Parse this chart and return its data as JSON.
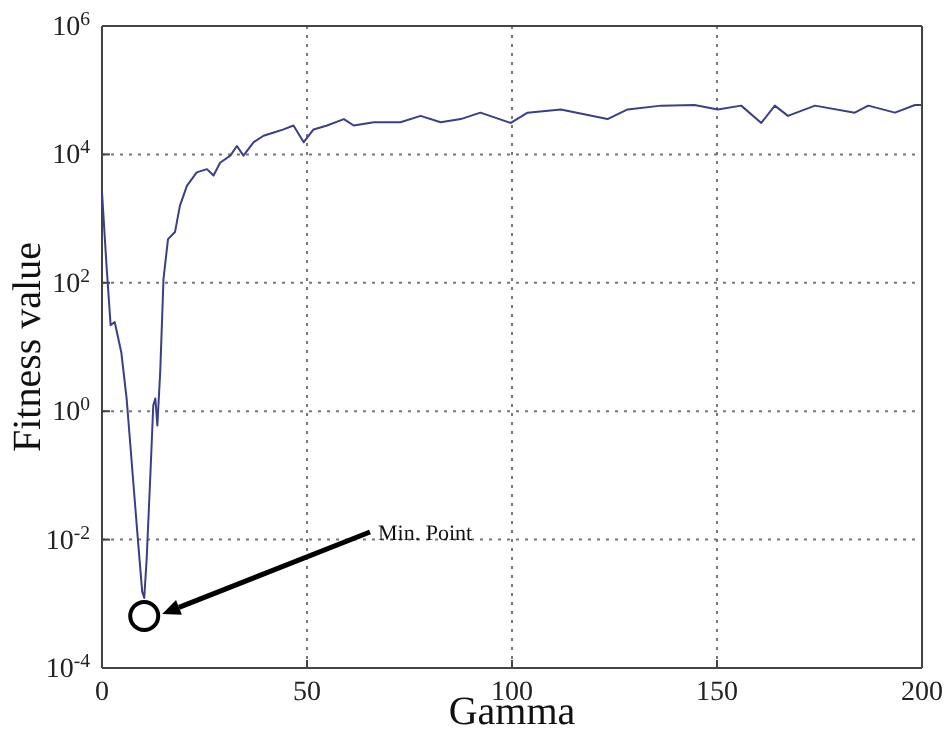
{
  "chart_data": {
    "type": "line",
    "xlabel": "Gamma",
    "ylabel": "Fitness value",
    "log": "y",
    "grid": true,
    "marker": "none",
    "line_style": "solid",
    "xlim": [
      0,
      200
    ],
    "xticks": [
      0,
      50,
      100,
      150,
      200
    ],
    "ylim": [
      0.0001,
      1000000
    ],
    "yticks": [
      {
        "value": 0.0001,
        "label": "10$^{-4}$"
      },
      {
        "value": 0.01,
        "label": "10$^{-2}$"
      },
      {
        "value": 1,
        "label": "10$^{0}$"
      },
      {
        "value": 100,
        "label": "10$^{2}$"
      },
      {
        "value": 10000,
        "label": "10$^{4}$"
      },
      {
        "value": 1000000,
        "label": "10$^{6}$"
      }
    ],
    "annotations": [
      "Min. Point"
    ],
    "series": [
      {
        "color": "#3b3f86",
        "x": [
          0,
          0.3,
          1.1,
          2.1,
          3.1,
          4.7,
          6,
          7.3,
          8.6,
          9.8,
          10.3,
          10.9,
          11.9,
          12.5,
          13,
          13.5,
          14.2,
          15,
          16.1,
          17.8,
          19,
          20.7,
          23.1,
          25.6,
          27.2,
          28.8,
          31.3,
          32.9,
          34.5,
          37,
          39.4,
          41.9,
          44.3,
          46.7,
          49.2,
          51.6,
          54.9,
          59,
          61.4,
          66.3,
          72.8,
          77.7,
          82.6,
          87.5,
          92.3,
          99.7,
          103.8,
          111.9,
          123.3,
          128.2,
          136.4,
          144.5,
          150.2,
          155.9,
          160.8,
          164.1,
          167.3,
          173.9,
          183.6,
          186.9,
          193.4,
          198.3,
          200
        ],
        "values": [
          2570,
          1260,
          186,
          21.9,
          24.5,
          8.3,
          1.58,
          0.145,
          0.0132,
          0.00155,
          0.00123,
          0.0051,
          0.145,
          1.23,
          1.58,
          0.6,
          4.1,
          115,
          479,
          617,
          1580,
          3240,
          5250,
          5890,
          4680,
          7410,
          9550,
          13500,
          9550,
          15500,
          19500,
          21900,
          24500,
          28200,
          15500,
          24500,
          28200,
          35500,
          28200,
          31600,
          31600,
          39800,
          31600,
          35500,
          44700,
          30900,
          44700,
          50100,
          35500,
          50100,
          57500,
          58900,
          50100,
          57500,
          30900,
          57500,
          39800,
          57500,
          44700,
          57500,
          44700,
          58900,
          58900
        ]
      }
    ]
  }
}
